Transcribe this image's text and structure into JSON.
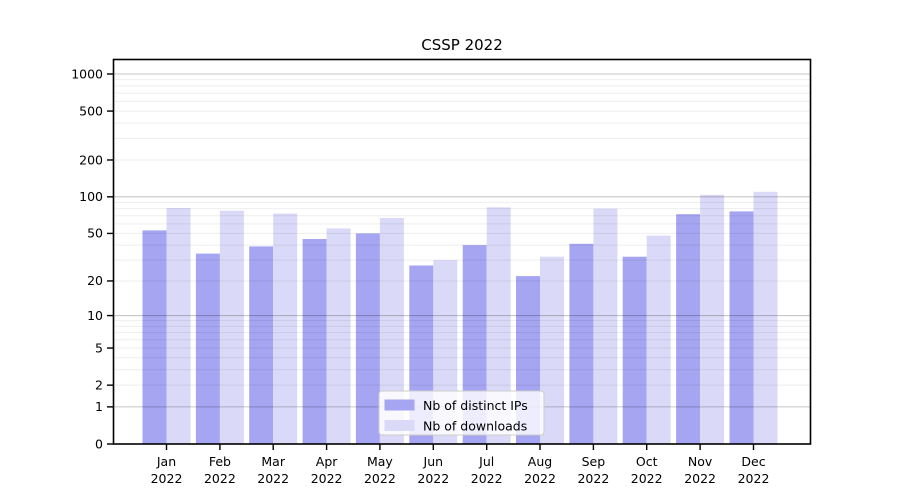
{
  "title": "CSSP 2022",
  "chart_data": {
    "type": "bar",
    "title": "CSSP 2022",
    "categories": [
      "Jan",
      "Feb",
      "Mar",
      "Apr",
      "May",
      "Jun",
      "Jul",
      "Aug",
      "Sep",
      "Oct",
      "Nov",
      "Dec"
    ],
    "category_year": "2022",
    "series": [
      {
        "name": "Nb of distinct IPs",
        "color": "#a5a5f2",
        "values": [
          53,
          34,
          39,
          45,
          50,
          27,
          40,
          22,
          41,
          32,
          72,
          76
        ]
      },
      {
        "name": "Nb of downloads",
        "color": "#dadaf8",
        "values": [
          81,
          77,
          73,
          55,
          67,
          30,
          82,
          32,
          80,
          48,
          104,
          110
        ]
      }
    ],
    "xlabel": "",
    "ylabel": "",
    "yscale": "symlog-ln(1+x)",
    "yticks": [
      0,
      1,
      2,
      5,
      10,
      20,
      50,
      100,
      200,
      500,
      1000
    ],
    "ylim": [
      0,
      1300
    ],
    "grid": "on",
    "grid_major_at": [
      1,
      10,
      100,
      1000
    ],
    "legend_position": "inside-bottom-center",
    "colors": {
      "axis": "#000000",
      "grid_minor": "rgba(0,0,0,0.07)",
      "grid_major": "rgba(0,0,0,0.22)",
      "legend_border": "#cccccc",
      "legend_fill": "rgba(255,255,255,0.8)",
      "background": "#ffffff"
    }
  }
}
